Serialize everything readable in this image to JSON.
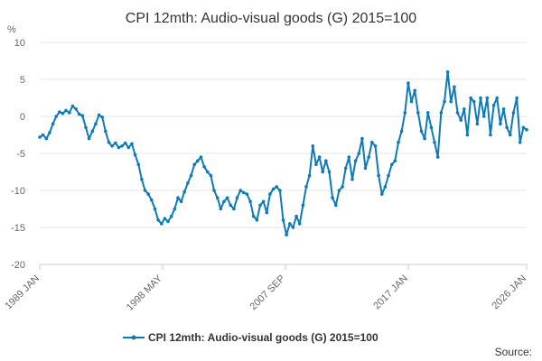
{
  "chart_data": {
    "type": "line",
    "title": "CPI 12mth: Audio-visual goods (G) 2015=100",
    "y_unit": "%",
    "ylim": [
      -20,
      10
    ],
    "y_ticks": [
      10,
      5,
      0,
      -5,
      -10,
      -15,
      -20
    ],
    "xlim": [
      "1989-01",
      "2026-01"
    ],
    "x_ticks": [
      {
        "label": "1989 JAN",
        "date": "1989-01"
      },
      {
        "label": "1998 MAY",
        "date": "1998-05"
      },
      {
        "label": "2007 SEP",
        "date": "2007-09"
      },
      {
        "label": "2017 JAN",
        "date": "2017-01"
      },
      {
        "label": "2026 JAN",
        "date": "2026-01"
      }
    ],
    "grid": "horizontal",
    "legend_position": "bottom",
    "series": [
      {
        "name": "CPI 12mth: Audio-visual goods (G) 2015=100",
        "color": "#0e7ab8",
        "points": [
          [
            "1989-01",
            -2.8
          ],
          [
            "1989-04",
            -2.5
          ],
          [
            "1989-07",
            -3.0
          ],
          [
            "1989-10",
            -2.2
          ],
          [
            "1990-01",
            -1.0
          ],
          [
            "1990-04",
            0.0
          ],
          [
            "1990-07",
            0.6
          ],
          [
            "1990-10",
            0.4
          ],
          [
            "1991-01",
            0.8
          ],
          [
            "1991-04",
            0.5
          ],
          [
            "1991-07",
            1.4
          ],
          [
            "1991-10",
            1.0
          ],
          [
            "1992-01",
            0.3
          ],
          [
            "1992-04",
            0.1
          ],
          [
            "1992-07",
            -1.5
          ],
          [
            "1992-10",
            -3.0
          ],
          [
            "1993-01",
            -2.0
          ],
          [
            "1993-04",
            -1.0
          ],
          [
            "1993-07",
            0.2
          ],
          [
            "1993-10",
            -0.1
          ],
          [
            "1994-01",
            -2.0
          ],
          [
            "1994-04",
            -3.5
          ],
          [
            "1994-07",
            -4.0
          ],
          [
            "1994-10",
            -3.6
          ],
          [
            "1995-01",
            -4.2
          ],
          [
            "1995-04",
            -4.0
          ],
          [
            "1995-07",
            -3.6
          ],
          [
            "1995-10",
            -4.2
          ],
          [
            "1996-01",
            -3.7
          ],
          [
            "1996-04",
            -5.2
          ],
          [
            "1996-07",
            -6.5
          ],
          [
            "1996-10",
            -8.5
          ],
          [
            "1997-01",
            -10.0
          ],
          [
            "1997-04",
            -10.5
          ],
          [
            "1997-07",
            -11.3
          ],
          [
            "1997-10",
            -12.5
          ],
          [
            "1998-01",
            -14.0
          ],
          [
            "1998-04",
            -14.5
          ],
          [
            "1998-07",
            -13.8
          ],
          [
            "1998-10",
            -14.2
          ],
          [
            "1999-01",
            -13.5
          ],
          [
            "1999-04",
            -12.5
          ],
          [
            "1999-07",
            -11.0
          ],
          [
            "1999-10",
            -11.5
          ],
          [
            "2000-01",
            -10.2
          ],
          [
            "2000-04",
            -9.0
          ],
          [
            "2000-07",
            -8.0
          ],
          [
            "2000-10",
            -6.5
          ],
          [
            "2001-01",
            -6.0
          ],
          [
            "2001-04",
            -5.5
          ],
          [
            "2001-07",
            -6.8
          ],
          [
            "2001-10",
            -7.5
          ],
          [
            "2002-01",
            -8.0
          ],
          [
            "2002-04",
            -10.0
          ],
          [
            "2002-07",
            -11.0
          ],
          [
            "2002-10",
            -12.5
          ],
          [
            "2003-01",
            -11.5
          ],
          [
            "2003-04",
            -11.0
          ],
          [
            "2003-07",
            -12.0
          ],
          [
            "2003-10",
            -12.5
          ],
          [
            "2004-01",
            -11.0
          ],
          [
            "2004-04",
            -10.0
          ],
          [
            "2004-07",
            -10.3
          ],
          [
            "2004-10",
            -10.5
          ],
          [
            "2005-01",
            -11.5
          ],
          [
            "2005-04",
            -13.5
          ],
          [
            "2005-07",
            -14.0
          ],
          [
            "2005-10",
            -12.0
          ],
          [
            "2006-01",
            -11.5
          ],
          [
            "2006-04",
            -13.0
          ],
          [
            "2006-07",
            -10.5
          ],
          [
            "2006-10",
            -9.8
          ],
          [
            "2007-01",
            -9.5
          ],
          [
            "2007-04",
            -10.0
          ],
          [
            "2007-07",
            -14.0
          ],
          [
            "2007-10",
            -16.0
          ],
          [
            "2008-01",
            -14.5
          ],
          [
            "2008-04",
            -15.0
          ],
          [
            "2008-07",
            -13.5
          ],
          [
            "2008-10",
            -14.5
          ],
          [
            "2009-01",
            -12.0
          ],
          [
            "2009-04",
            -9.5
          ],
          [
            "2009-07",
            -8.0
          ],
          [
            "2009-10",
            -4.0
          ],
          [
            "2010-01",
            -6.5
          ],
          [
            "2010-04",
            -5.5
          ],
          [
            "2010-07",
            -7.5
          ],
          [
            "2010-10",
            -6.0
          ],
          [
            "2011-01",
            -7.5
          ],
          [
            "2011-04",
            -11.0
          ],
          [
            "2011-07",
            -12.0
          ],
          [
            "2011-10",
            -10.0
          ],
          [
            "2012-01",
            -9.5
          ],
          [
            "2012-04",
            -7.0
          ],
          [
            "2012-07",
            -5.5
          ],
          [
            "2012-10",
            -8.5
          ],
          [
            "2013-01",
            -6.0
          ],
          [
            "2013-04",
            -5.0
          ],
          [
            "2013-07",
            -3.0
          ],
          [
            "2013-10",
            -7.0
          ],
          [
            "2014-01",
            -5.5
          ],
          [
            "2014-04",
            -3.5
          ],
          [
            "2014-07",
            -4.0
          ],
          [
            "2014-10",
            -8.0
          ],
          [
            "2015-01",
            -10.5
          ],
          [
            "2015-04",
            -9.5
          ],
          [
            "2015-07",
            -8.0
          ],
          [
            "2015-10",
            -6.5
          ],
          [
            "2016-01",
            -6.0
          ],
          [
            "2016-04",
            -3.5
          ],
          [
            "2016-07",
            -2.0
          ],
          [
            "2016-10",
            0.5
          ],
          [
            "2017-01",
            4.5
          ],
          [
            "2017-04",
            2.0
          ],
          [
            "2017-07",
            3.5
          ],
          [
            "2017-10",
            0.5
          ],
          [
            "2018-01",
            -2.0
          ],
          [
            "2018-04",
            -3.0
          ],
          [
            "2018-07",
            0.5
          ],
          [
            "2018-10",
            -1.5
          ],
          [
            "2019-01",
            -3.5
          ],
          [
            "2019-04",
            -5.5
          ],
          [
            "2019-07",
            0.5
          ],
          [
            "2019-10",
            2.0
          ],
          [
            "2020-01",
            6.0
          ],
          [
            "2020-04",
            2.0
          ],
          [
            "2020-07",
            4.0
          ],
          [
            "2020-10",
            0.5
          ],
          [
            "2021-01",
            -0.5
          ],
          [
            "2021-04",
            1.0
          ],
          [
            "2021-07",
            -2.5
          ],
          [
            "2021-10",
            2.5
          ],
          [
            "2022-01",
            2.0
          ],
          [
            "2022-04",
            -1.0
          ],
          [
            "2022-07",
            2.5
          ],
          [
            "2022-10",
            0.0
          ],
          [
            "2023-01",
            2.5
          ],
          [
            "2023-04",
            -2.5
          ],
          [
            "2023-07",
            1.5
          ],
          [
            "2023-10",
            2.5
          ],
          [
            "2024-01",
            -1.0
          ],
          [
            "2024-04",
            1.0
          ],
          [
            "2024-07",
            -1.5
          ],
          [
            "2024-10",
            -2.5
          ],
          [
            "2025-01",
            0.5
          ],
          [
            "2025-04",
            2.5
          ],
          [
            "2025-07",
            -3.5
          ],
          [
            "2025-10",
            -1.5
          ],
          [
            "2026-01",
            -1.8
          ]
        ]
      }
    ],
    "source_label": "Source:"
  }
}
